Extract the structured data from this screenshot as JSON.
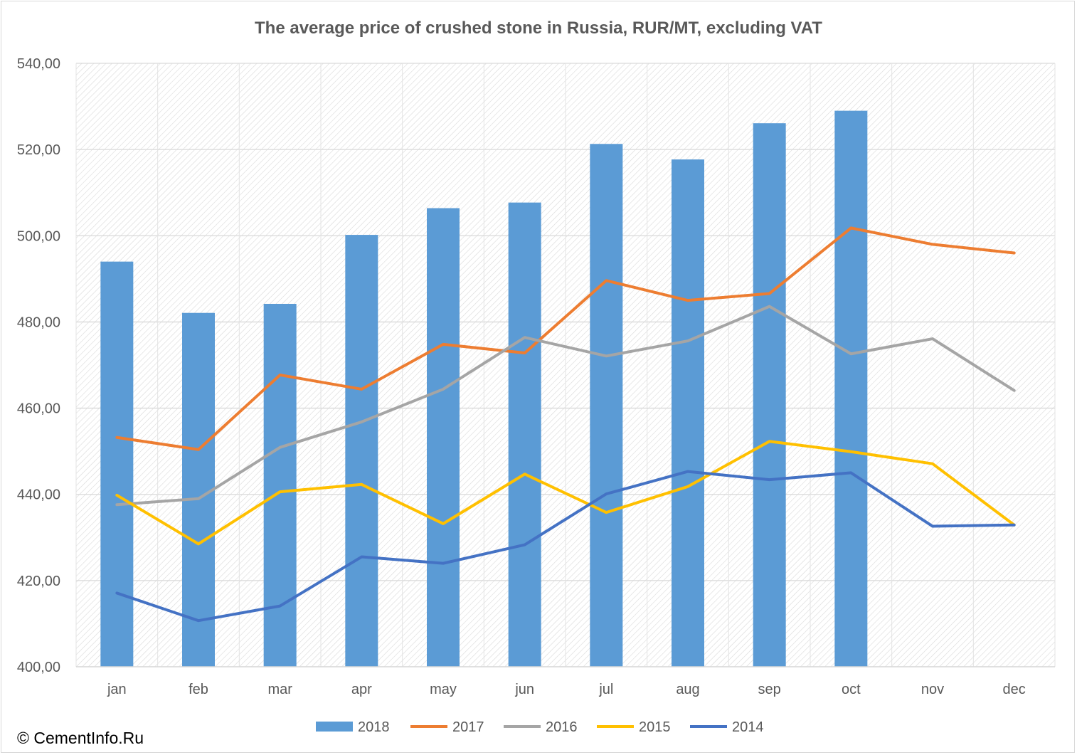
{
  "chart_data": {
    "type": "bar",
    "title": "The average price of crushed stone in Russia, RUR/MT, excluding VAT",
    "categories": [
      "jan",
      "feb",
      "mar",
      "apr",
      "may",
      "jun",
      "jul",
      "aug",
      "sep",
      "oct",
      "nov",
      "dec"
    ],
    "ylim": [
      400,
      540
    ],
    "yticks": [
      400,
      420,
      440,
      460,
      480,
      500,
      520,
      540
    ],
    "ytick_labels": [
      "400,00",
      "420,00",
      "440,00",
      "460,00",
      "480,00",
      "500,00",
      "520,00",
      "540,00"
    ],
    "grid": true,
    "legend_position": "bottom",
    "series": [
      {
        "name": "2018",
        "type": "bar",
        "color": "#5b9bd5",
        "values": [
          494.0,
          482.1,
          484.2,
          500.2,
          506.4,
          507.7,
          521.3,
          517.7,
          526.1,
          529.0,
          null,
          null
        ]
      },
      {
        "name": "2017",
        "type": "line",
        "color": "#ed7d31",
        "values": [
          453.2,
          450.4,
          467.7,
          464.4,
          474.8,
          472.8,
          489.6,
          485.0,
          486.6,
          501.8,
          498.0,
          496.0
        ]
      },
      {
        "name": "2016",
        "type": "line",
        "color": "#a5a5a5",
        "values": [
          437.6,
          439.0,
          450.9,
          456.8,
          464.4,
          476.4,
          472.1,
          475.6,
          483.6,
          472.6,
          476.1,
          464.1
        ]
      },
      {
        "name": "2015",
        "type": "line",
        "color": "#ffc000",
        "values": [
          439.8,
          428.5,
          440.6,
          442.3,
          433.2,
          444.7,
          435.8,
          441.8,
          452.3,
          449.9,
          447.1,
          432.9
        ]
      },
      {
        "name": "2014",
        "type": "line",
        "color": "#4472c4",
        "values": [
          417.1,
          410.7,
          414.1,
          425.5,
          424.0,
          428.3,
          440.1,
          445.3,
          443.4,
          445.0,
          432.6,
          432.9
        ]
      }
    ]
  },
  "footer": {
    "copyright": "© CementInfo.Ru"
  }
}
